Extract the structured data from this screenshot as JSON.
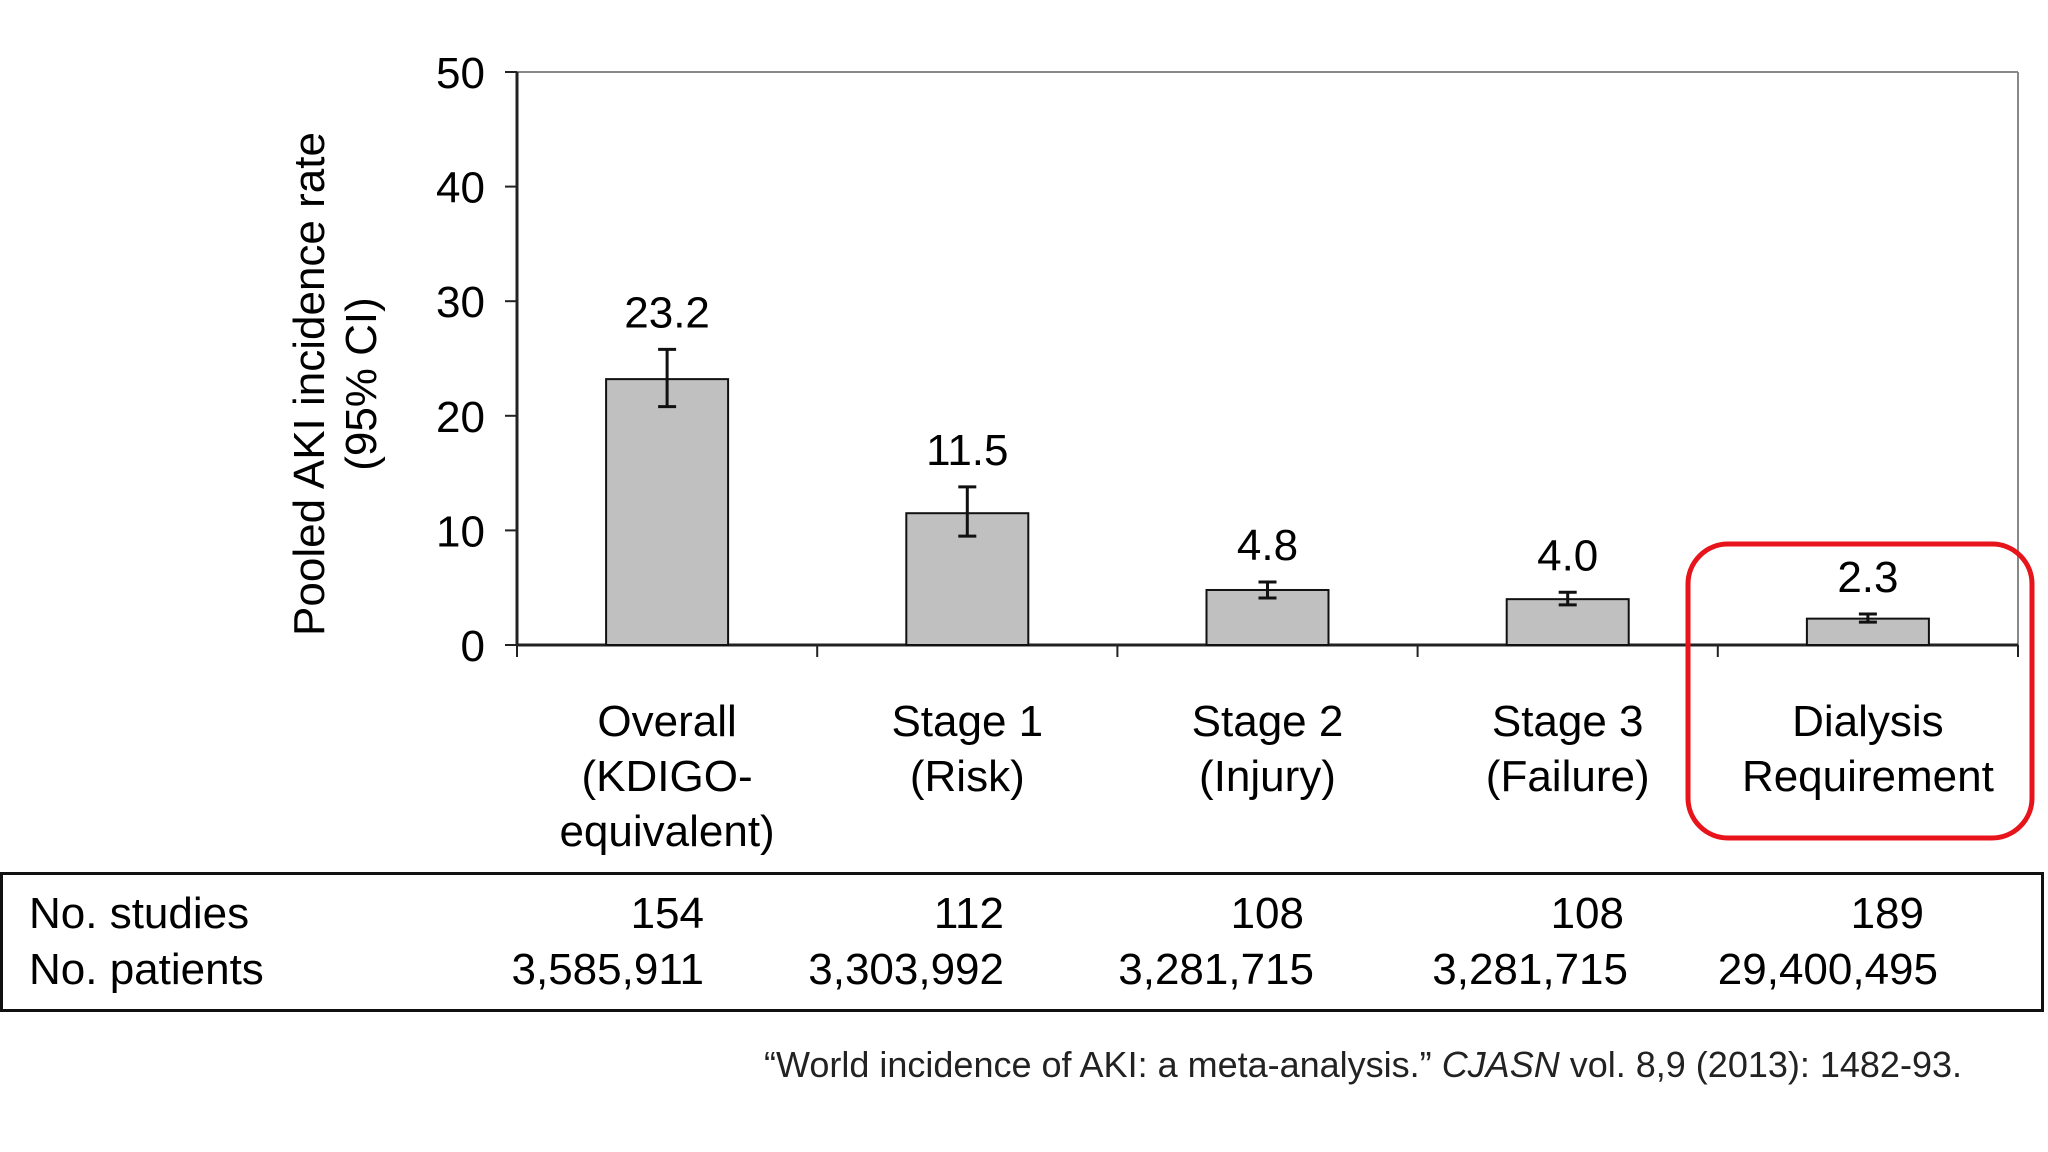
{
  "chart_data": {
    "type": "bar",
    "ylabel_line1": "Pooled AKI incidence rate",
    "ylabel_line2": "(95% CI)",
    "ylim": [
      0,
      50
    ],
    "yticks": [
      0,
      10,
      20,
      30,
      40,
      50
    ],
    "grid": false,
    "categories": [
      [
        "Overall",
        "(KDIGO-",
        "equivalent)"
      ],
      [
        "Stage 1",
        "(Risk)"
      ],
      [
        "Stage 2",
        "(Injury)"
      ],
      [
        "Stage 3",
        "(Failure)"
      ],
      [
        "Dialysis",
        "Requirement"
      ]
    ],
    "values": [
      23.2,
      11.5,
      4.8,
      4.0,
      2.3
    ],
    "value_labels": [
      "23.2",
      "11.5",
      "4.8",
      "4.0",
      "2.3"
    ],
    "ci_low": [
      20.8,
      9.5,
      4.1,
      3.5,
      2.0
    ],
    "ci_high": [
      25.8,
      13.8,
      5.5,
      4.6,
      2.7
    ],
    "highlighted_category_index": 4,
    "bar_color": "#c0c0c0",
    "highlight_color": "#e8141b"
  },
  "table": {
    "row1_label": "No. studies",
    "row2_label": "No. patients",
    "studies": [
      "154",
      "112",
      "108",
      "108",
      "189"
    ],
    "patients": [
      "3,585,911",
      "3,303,992",
      "3,281,715",
      "3,281,715",
      "29,400,495"
    ]
  },
  "citation": {
    "title": "“World incidence of AKI: a meta-analysis.”",
    "journal": "CJASN",
    "details": "vol. 8,9 (2013): 1482-93."
  }
}
